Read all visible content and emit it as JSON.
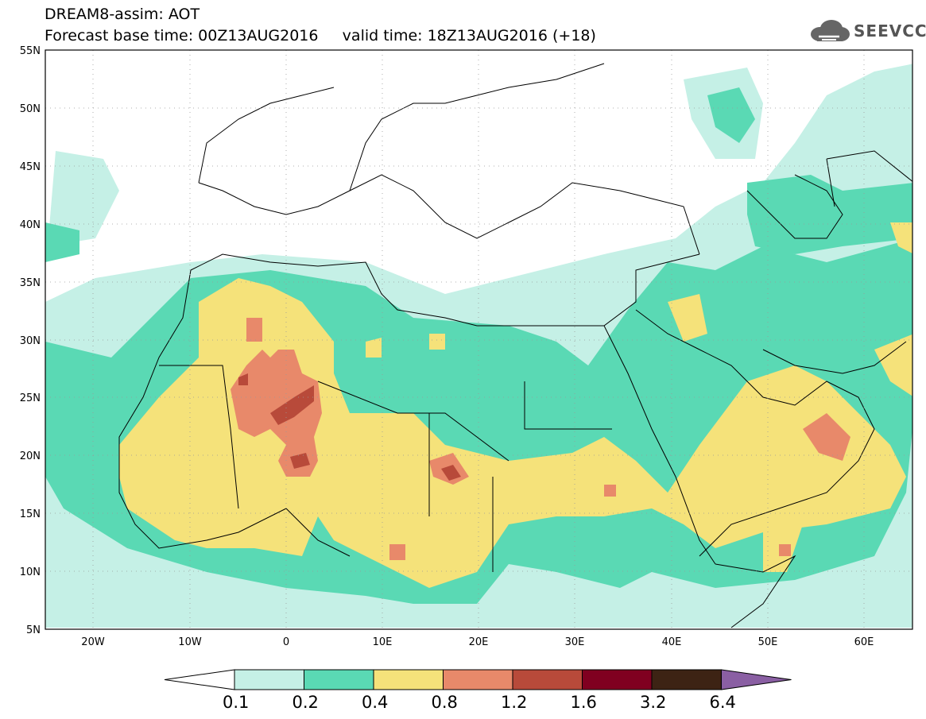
{
  "header": {
    "title_line1": "DREAM8-assim: AOT",
    "title_line2": "Forecast base time: 00Z13AUG2016     valid time: 18Z13AUG2016 (+18)"
  },
  "logo": {
    "text": "SEEVCCC",
    "icon": "cloud-icon"
  },
  "map": {
    "lon_range": [
      -25,
      65
    ],
    "lat_range": [
      5,
      55
    ],
    "lat_labels": [
      "55N",
      "50N",
      "45N",
      "40N",
      "35N",
      "30N",
      "25N",
      "20N",
      "15N",
      "10N",
      "5N"
    ],
    "lon_labels": [
      "20W",
      "10W",
      "0",
      "10E",
      "20E",
      "30E",
      "40E",
      "50E",
      "60E"
    ],
    "grid": "dotted"
  },
  "colorbar": {
    "labels": [
      "0.1",
      "0.2",
      "0.4",
      "0.8",
      "1.2",
      "1.6",
      "3.2",
      "6.4"
    ],
    "colors": [
      "#ffffff",
      "#c5f0e6",
      "#5ad9b4",
      "#f5e27a",
      "#e8896a",
      "#b84a3a",
      "#800020",
      "#3d2314",
      "#8a5fa3"
    ]
  }
}
